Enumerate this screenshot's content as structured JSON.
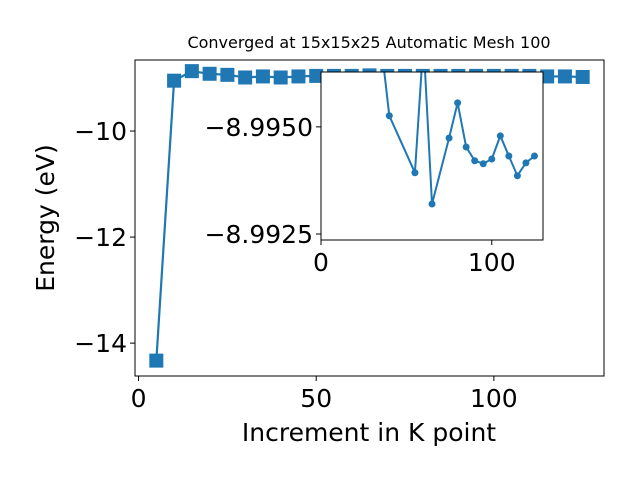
{
  "chart_data": [
    {
      "type": "line",
      "title": "Converged at 15x15x25 Automatic Mesh 100",
      "x_label": "Increment in K point",
      "y_label": "Energy (eV)",
      "xlim": [
        -1,
        131
      ],
      "ylim": [
        -14.62,
        -8.66
      ],
      "xticks": [
        0,
        50,
        100
      ],
      "yticks": [
        {
          "value": -10,
          "label": "−10"
        },
        {
          "value": -12,
          "label": "−12"
        },
        {
          "value": -14,
          "label": "−14"
        }
      ],
      "marker": "square",
      "series": [
        {
          "color": "#1f77b4",
          "x": [
            5,
            10,
            15,
            20,
            25,
            30,
            35,
            40,
            45,
            50,
            55,
            60,
            65,
            70,
            75,
            80,
            85,
            90,
            95,
            100,
            105,
            110,
            115,
            120,
            125
          ],
          "values": [
            -14.33,
            -9.05,
            -8.87,
            -8.92,
            -8.94,
            -8.99,
            -8.97,
            -8.99,
            -8.97,
            -8.96,
            -8.96,
            -8.96,
            -8.95,
            -8.96,
            -8.96,
            -8.96,
            -8.96,
            -8.96,
            -8.96,
            -8.96,
            -8.96,
            -8.96,
            -8.97,
            -8.97,
            -8.98
          ]
        }
      ]
    },
    {
      "type": "line",
      "xlim": [
        0,
        130
      ],
      "ylim": [
        -8.99236,
        -8.99628
      ],
      "xticks": [
        0,
        100
      ],
      "yticks": [
        {
          "value": -8.995,
          "label": "−8.9950"
        },
        {
          "value": -8.9925,
          "label": "−8.9925"
        }
      ],
      "marker": "circle",
      "series": [
        {
          "color": "#1f77b4",
          "x": [
            35,
            40,
            55,
            60,
            65,
            75,
            80,
            85,
            90,
            95,
            100,
            105,
            110,
            115,
            120,
            125
          ],
          "values": [
            -8.997,
            -8.99526,
            -8.99393,
            -8.997,
            -8.9932,
            -8.99474,
            -8.99556,
            -8.99453,
            -8.99421,
            -8.99414,
            -8.99425,
            -8.99479,
            -8.99432,
            -8.99386,
            -8.99416,
            -8.99432
          ]
        }
      ]
    }
  ]
}
